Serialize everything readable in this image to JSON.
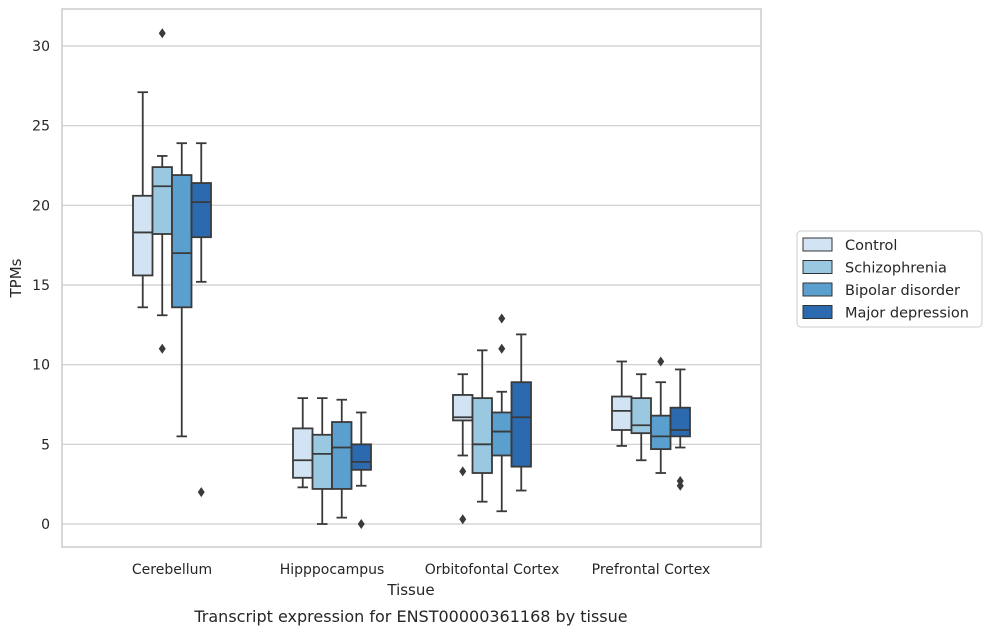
{
  "chart_data": {
    "type": "box",
    "caption": "Transcript expression for ENST00000361168 by tissue",
    "xlabel": "Tissue",
    "ylabel": "TPMs",
    "ylim": [
      -1.5,
      32.3
    ],
    "yticks": [
      0,
      5,
      10,
      15,
      20,
      25,
      30
    ],
    "grid": "horizontal",
    "legend_position": "right",
    "categories": [
      "Cerebellum",
      "Hipppocampus",
      "Orbitofontal Cortex",
      "Prefrontal Cortex"
    ],
    "series": [
      {
        "name": "Control",
        "color": "#d2e3f3",
        "boxes": [
          {
            "whislo": 13.6,
            "q1": 15.6,
            "med": 18.3,
            "q3": 20.6,
            "whishi": 27.1,
            "fliers": []
          },
          {
            "whislo": 2.3,
            "q1": 2.9,
            "med": 4.0,
            "q3": 6.0,
            "whishi": 7.9,
            "fliers": []
          },
          {
            "whislo": 4.3,
            "q1": 6.5,
            "med": 6.7,
            "q3": 8.1,
            "whishi": 9.4,
            "fliers": [
              3.3,
              0.3
            ]
          },
          {
            "whislo": 4.9,
            "q1": 5.9,
            "med": 7.1,
            "q3": 8.0,
            "whishi": 10.2,
            "fliers": []
          }
        ]
      },
      {
        "name": "Schizophrenia",
        "color": "#9ac8e0",
        "boxes": [
          {
            "whislo": 13.1,
            "q1": 18.2,
            "med": 21.2,
            "q3": 22.4,
            "whishi": 23.1,
            "fliers": [
              30.8,
              11.0
            ]
          },
          {
            "whislo": 0.0,
            "q1": 2.2,
            "med": 4.4,
            "q3": 5.6,
            "whishi": 7.9,
            "fliers": []
          },
          {
            "whislo": 1.4,
            "q1": 3.2,
            "med": 5.0,
            "q3": 7.9,
            "whishi": 10.9,
            "fliers": []
          },
          {
            "whislo": 4.0,
            "q1": 5.7,
            "med": 6.2,
            "q3": 7.9,
            "whishi": 9.4,
            "fliers": []
          }
        ]
      },
      {
        "name": "Bipolar disorder",
        "color": "#5a9fcd",
        "boxes": [
          {
            "whislo": 5.5,
            "q1": 13.6,
            "med": 17.0,
            "q3": 21.9,
            "whishi": 23.9,
            "fliers": []
          },
          {
            "whislo": 0.4,
            "q1": 2.2,
            "med": 4.8,
            "q3": 6.4,
            "whishi": 7.8,
            "fliers": []
          },
          {
            "whislo": 0.8,
            "q1": 4.3,
            "med": 5.8,
            "q3": 7.0,
            "whishi": 8.3,
            "fliers": [
              12.9,
              11.0
            ]
          },
          {
            "whislo": 3.2,
            "q1": 4.7,
            "med": 5.5,
            "q3": 6.8,
            "whishi": 8.9,
            "fliers": [
              10.2
            ]
          }
        ]
      },
      {
        "name": "Major depression",
        "color": "#2b6aae",
        "boxes": [
          {
            "whislo": 15.2,
            "q1": 18.0,
            "med": 20.2,
            "q3": 21.4,
            "whishi": 23.9,
            "fliers": [
              2.0
            ]
          },
          {
            "whislo": 2.4,
            "q1": 3.4,
            "med": 3.9,
            "q3": 5.0,
            "whishi": 7.0,
            "fliers": [
              0.0
            ]
          },
          {
            "whislo": 2.1,
            "q1": 3.6,
            "med": 6.7,
            "q3": 8.9,
            "whishi": 11.9,
            "fliers": []
          },
          {
            "whislo": 4.8,
            "q1": 5.5,
            "med": 5.9,
            "q3": 7.3,
            "whishi": 9.7,
            "fliers": [
              2.7,
              2.4
            ]
          }
        ]
      }
    ]
  }
}
